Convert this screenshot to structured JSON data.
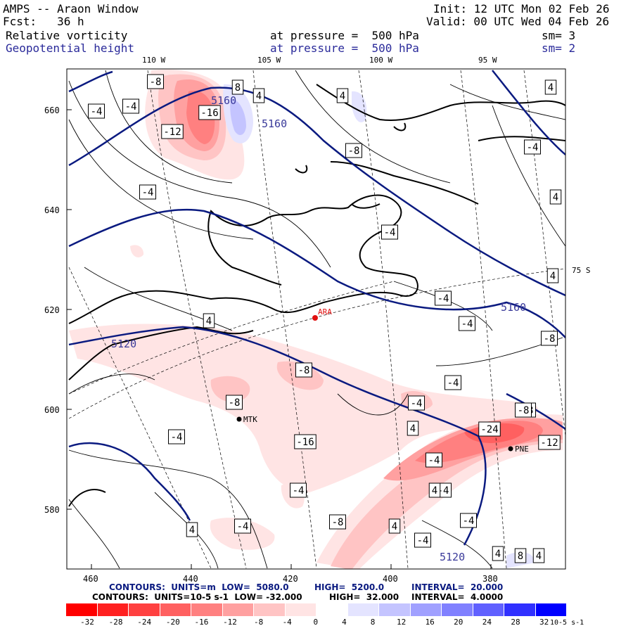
{
  "header": {
    "title": "AMPS -- Araon Window",
    "fcst": "Fcst:   36 h",
    "init": "Init: 12 UTC Mon 02 Feb 26",
    "valid": "Valid: 00 UTC Wed 04 Feb 26",
    "field1": "Relative vorticity",
    "field1_pressure": "at pressure =  500 hPa",
    "field1_sm": "sm= 3",
    "field2": "Geopotential height",
    "field2_pressure": "at pressure =  500 hPa",
    "field2_sm": "sm= 2"
  },
  "map": {
    "top_lon_labels": [
      "110 W",
      "105 W",
      "100 W",
      "95 W"
    ],
    "left_ticks": [
      "660",
      "640",
      "620",
      "600",
      "580"
    ],
    "bottom_ticks": [
      "460",
      "440",
      "420",
      "400",
      "380"
    ],
    "lat_label": "75 S",
    "stations": [
      {
        "name": "ARA",
        "color": "#e01010"
      },
      {
        "name": "MTK",
        "color": "#000000"
      },
      {
        "name": "PNE",
        "color": "#000000"
      }
    ],
    "height_contour_labels": [
      "5160",
      "5160",
      "5120",
      "5160",
      "5120"
    ],
    "vorticity_labels": [
      "-8",
      "-16",
      "-12",
      "8",
      "4",
      "-4",
      "-4",
      "4",
      "-8",
      "-4",
      "4",
      "-4",
      "4",
      "-4",
      "-4",
      "4",
      "-4",
      "-8",
      "-8",
      "-4",
      "-8",
      "-4",
      "-8",
      "-24",
      "4",
      "-8",
      "-12",
      "-4",
      "-16",
      "-4",
      "-8",
      "-4",
      "-4",
      "4",
      "-4",
      "-4",
      "4",
      "-4",
      "4",
      "4",
      "8",
      "4",
      "4"
    ]
  },
  "footer": {
    "line1_label": "CONTOURS:  UNITS=m  LOW=  5080.0",
    "line1_high": "HIGH=  5200.0",
    "line1_interval": "INTERVAL=  20.000",
    "line2_label": "CONTOURS:  UNITS=10-5 s-1  LOW= -32.000",
    "line2_high": "HIGH=  32.000",
    "line2_interval": "INTERVAL=  4.0000"
  },
  "colorbar": {
    "ticks": [
      "-32",
      "-28",
      "-24",
      "-20",
      "-16",
      "-12",
      "-8",
      "-4",
      "0",
      "4",
      "8",
      "12",
      "16",
      "20",
      "24",
      "28",
      "32"
    ],
    "units": "10-5 s-1",
    "colors": [
      "#ff0000",
      "#ff2020",
      "#ff4040",
      "#ff6060",
      "#ff8080",
      "#ffa0a0",
      "#ffc4c4",
      "#ffe4e4",
      "#ffffff",
      "#ffffff",
      "#e4e4ff",
      "#c4c4ff",
      "#a0a0ff",
      "#8080ff",
      "#6060ff",
      "#3030ff",
      "#0000ff"
    ]
  }
}
